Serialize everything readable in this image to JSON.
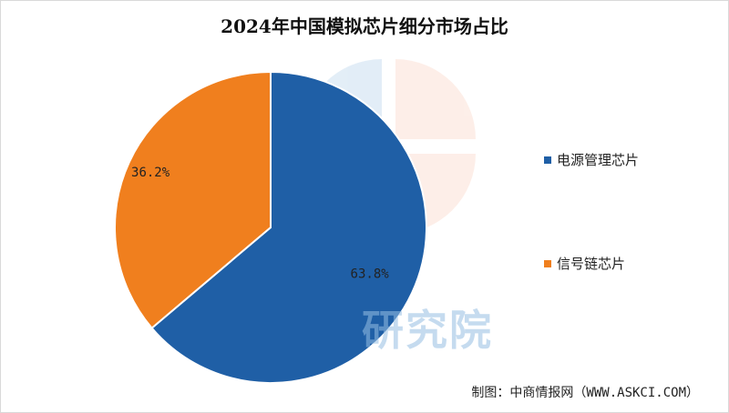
{
  "chart_data": {
    "type": "pie",
    "title": "2024年中国模拟芯片细分市场占比",
    "categories": [
      "电源管理芯片",
      "信号链芯片"
    ],
    "values": [
      63.8,
      36.2
    ],
    "labels": [
      "63.8%",
      "36.2%"
    ],
    "colors": [
      "#1f5fa6",
      "#f07f1e"
    ],
    "legend_position": "right",
    "start_angle_deg": 0,
    "direction": "clockwise"
  },
  "watermark": "研究院",
  "source": "制图：中商情报网（WWW.ASKCI.COM）"
}
